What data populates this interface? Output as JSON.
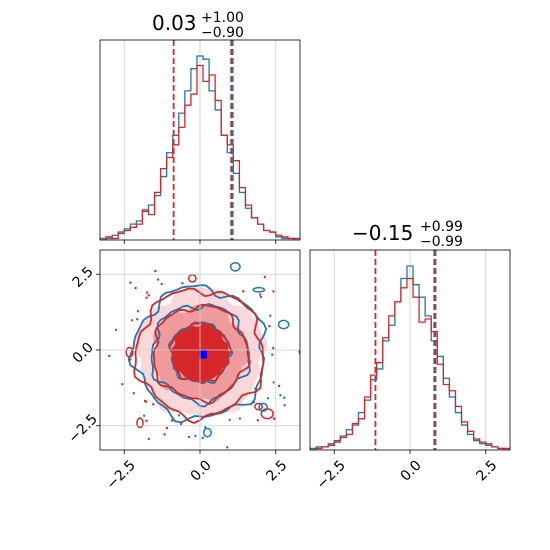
{
  "chart_data": {
    "type": "corner",
    "colors": {
      "blue": "#1f77b4",
      "red": "#d62728",
      "marker": "#0000ff",
      "grid": "#cccccc"
    },
    "axis_range": [
      -3.3,
      3.3
    ],
    "ticks": [
      -2.5,
      0.0,
      2.5
    ],
    "tick_labels": [
      "−2.5",
      "0.0",
      "2.5"
    ],
    "marker": {
      "x": 0.1,
      "y": -0.15
    },
    "panels": [
      {
        "name": "param-1-marginal",
        "title": {
          "value": "0.03",
          "plus": "+1.00",
          "minus": "−0.90"
        },
        "quantile_lines": [
          -0.87,
          1.03
        ],
        "blue_quantile_line": 1.08,
        "hist_edges_start": -3.3,
        "hist_bin_width": 0.2,
        "red_counts": [
          0,
          2,
          1,
          5,
          6,
          8,
          10,
          19,
          16,
          30,
          45,
          52,
          60,
          71,
          85,
          92,
          110,
          100,
          104,
          88,
          66,
          60,
          50,
          33,
          22,
          14,
          10,
          6,
          5,
          3,
          2,
          1,
          1
        ],
        "blue_counts": [
          1,
          1,
          3,
          4,
          7,
          10,
          12,
          18,
          22,
          28,
          40,
          55,
          66,
          80,
          94,
          108,
          116,
          114,
          94,
          82,
          66,
          55,
          42,
          30,
          20,
          14,
          10,
          6,
          5,
          2,
          1,
          1,
          0
        ]
      },
      {
        "name": "param-2-marginal",
        "title": {
          "value": "−0.15",
          "plus": "+0.99",
          "minus": "−0.99"
        },
        "quantile_lines": [
          -1.14,
          0.84
        ],
        "blue_quantile_line": 0.8,
        "hist_edges_start": -3.3,
        "hist_bin_width": 0.2,
        "red_counts": [
          0,
          1,
          2,
          3,
          6,
          8,
          10,
          17,
          20,
          34,
          48,
          56,
          72,
          86,
          95,
          104,
          110,
          98,
          82,
          84,
          76,
          55,
          42,
          38,
          28,
          18,
          12,
          7,
          5,
          4,
          2,
          1,
          1
        ],
        "blue_counts": [
          1,
          2,
          2,
          4,
          5,
          9,
          13,
          16,
          24,
          32,
          45,
          52,
          70,
          80,
          95,
          110,
          118,
          106,
          98,
          86,
          70,
          60,
          46,
          34,
          24,
          16,
          10,
          6,
          4,
          3,
          2,
          1,
          0
        ]
      }
    ],
    "joint": {
      "name": "param-1-vs-param-2",
      "x_panel": "param-1-marginal",
      "y_panel": "param-2-marginal",
      "center": [
        0.0,
        -0.1
      ],
      "contour_radii": [
        0.95,
        1.55,
        2.1
      ],
      "fill_colors": [
        "#d62728",
        "#ef9a9b",
        "#fad7d8"
      ]
    }
  }
}
